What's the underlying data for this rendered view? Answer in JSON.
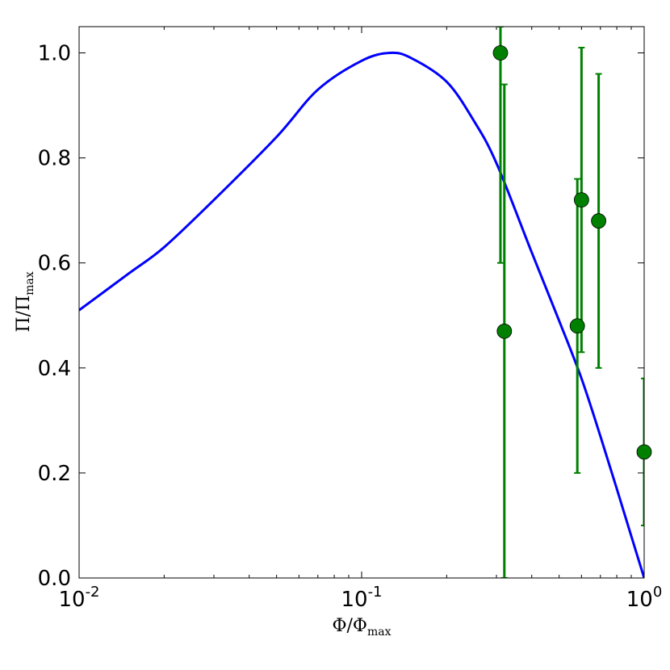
{
  "chart_data": {
    "type": "line",
    "xscale": "log",
    "xlim": [
      0.01,
      1.0
    ],
    "ylim": [
      0.0,
      1.05
    ],
    "grid": false,
    "xlabel": {
      "main": "Φ/Φ",
      "sub": "max"
    },
    "ylabel": {
      "main": "Π/Π",
      "sub": "max"
    },
    "x_major_ticks": [
      {
        "value": 0.01,
        "base": "10",
        "exp": "-2"
      },
      {
        "value": 0.1,
        "base": "10",
        "exp": "-1"
      },
      {
        "value": 1.0,
        "base": "10",
        "exp": "0"
      }
    ],
    "y_ticks": [
      {
        "value": 0.0,
        "label": "0.0"
      },
      {
        "value": 0.2,
        "label": "0.2"
      },
      {
        "value": 0.4,
        "label": "0.4"
      },
      {
        "value": 0.6,
        "label": "0.6"
      },
      {
        "value": 0.8,
        "label": "0.8"
      },
      {
        "value": 1.0,
        "label": "1.0"
      }
    ],
    "series": [
      {
        "kind": "line",
        "color": "#0000ff",
        "x": [
          0.01,
          0.015,
          0.02,
          0.03,
          0.05,
          0.07,
          0.1,
          0.126,
          0.15,
          0.2,
          0.25,
          0.3,
          0.4,
          0.5,
          0.6,
          0.7,
          0.8,
          0.9,
          1.0
        ],
        "y": [
          0.51,
          0.58,
          0.63,
          0.72,
          0.84,
          0.93,
          0.985,
          1.0,
          0.99,
          0.945,
          0.87,
          0.79,
          0.62,
          0.49,
          0.38,
          0.27,
          0.17,
          0.08,
          0.0
        ]
      },
      {
        "kind": "errorbar",
        "color": "#008000",
        "points": [
          {
            "x": 0.31,
            "y": 1.0,
            "yerr_low": 0.6,
            "yerr_high": 1.05
          },
          {
            "x": 0.32,
            "y": 0.47,
            "yerr_low": 0.0,
            "yerr_high": 0.94
          },
          {
            "x": 0.58,
            "y": 0.48,
            "yerr_low": 0.2,
            "yerr_high": 0.76
          },
          {
            "x": 0.6,
            "y": 0.72,
            "yerr_low": 0.43,
            "yerr_high": 1.01
          },
          {
            "x": 0.69,
            "y": 0.68,
            "yerr_low": 0.4,
            "yerr_high": 0.96
          },
          {
            "x": 1.0,
            "y": 0.24,
            "yerr_low": 0.1,
            "yerr_high": 0.38
          }
        ]
      }
    ]
  }
}
